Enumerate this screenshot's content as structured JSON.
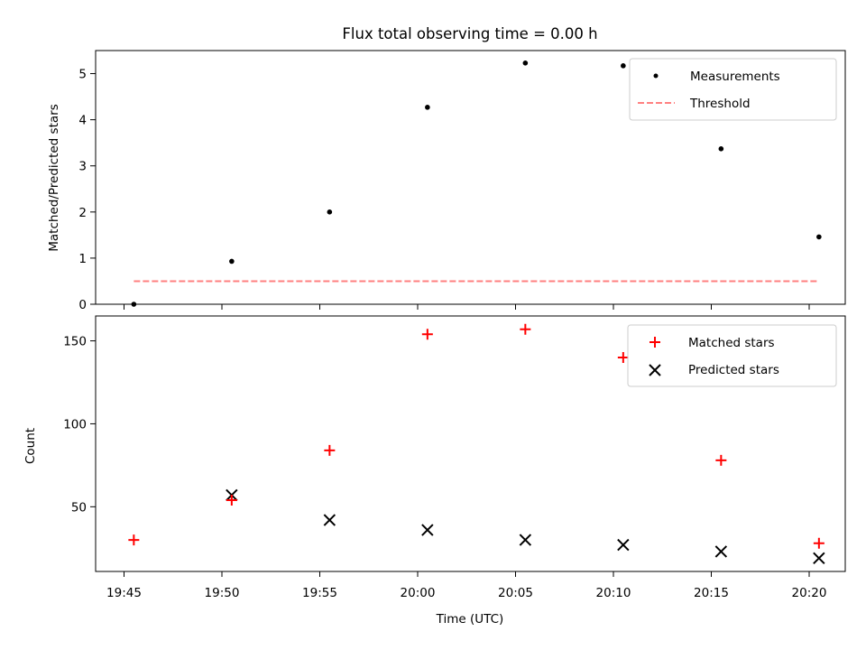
{
  "chart_data": [
    {
      "type": "scatter",
      "title": "Flux total observing time = 0.00 h",
      "ylabel": "Matched/Predicted stars",
      "ylim": [
        0,
        5.5
      ],
      "yticks": [
        0,
        1,
        2,
        3,
        4,
        5
      ],
      "x": [
        "19:45:30",
        "19:50:30",
        "19:55:30",
        "20:00:30",
        "20:05:30",
        "20:10:30",
        "20:15:30",
        "20:20:30"
      ],
      "series": [
        {
          "name": "Measurements",
          "marker": "dot",
          "color": "#000000",
          "values": [
            0.0,
            0.93,
            2.0,
            4.27,
            5.23,
            5.17,
            3.37,
            1.46
          ]
        },
        {
          "name": "Threshold",
          "marker": "dashed-line",
          "color": "#ff8080",
          "values": [
            0.5,
            0.5,
            0.5,
            0.5,
            0.5,
            0.5,
            0.5,
            0.5
          ]
        }
      ],
      "legend": "top-right"
    },
    {
      "type": "scatter",
      "xlabel": "Time (UTC)",
      "ylabel": "Count",
      "ylim": [
        11,
        165
      ],
      "yticks": [
        50,
        100,
        150
      ],
      "xticks": [
        "19:45",
        "19:50",
        "19:55",
        "20:00",
        "20:05",
        "20:10",
        "20:15",
        "20:20"
      ],
      "x": [
        "19:45:30",
        "19:50:30",
        "19:55:30",
        "20:00:30",
        "20:05:30",
        "20:10:30",
        "20:15:30",
        "20:20:30"
      ],
      "series": [
        {
          "name": "Matched stars",
          "marker": "plus",
          "color": "#ff0000",
          "values": [
            30,
            54,
            84,
            154,
            157,
            140,
            78,
            28
          ]
        },
        {
          "name": "Predicted stars",
          "marker": "x",
          "color": "#000000",
          "values": [
            null,
            57,
            42,
            36,
            30,
            27,
            23,
            19
          ]
        }
      ],
      "legend": "top-right"
    }
  ]
}
